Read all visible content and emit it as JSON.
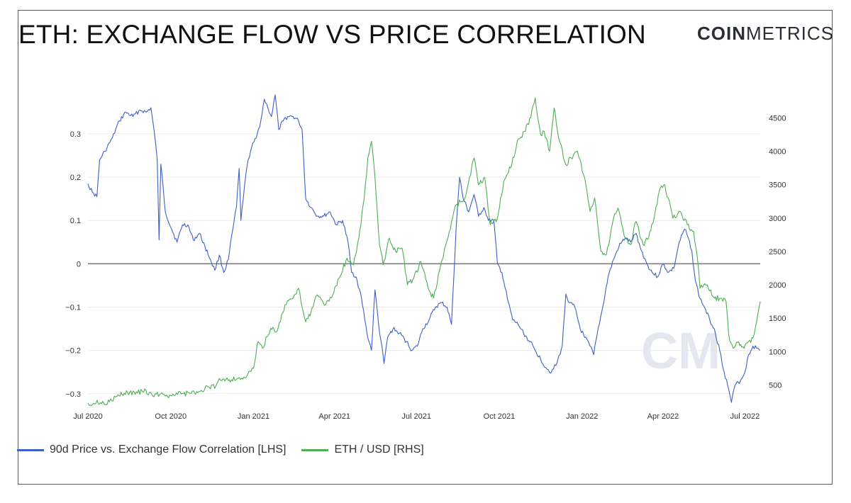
{
  "header": {
    "title": "ETH: EXCHANGE FLOW VS PRICE CORRELATION",
    "brand_bold": "COIN",
    "brand_light": "METRICS"
  },
  "watermark": "CM",
  "colors": {
    "correlation": "#3f5fc6",
    "price": "#4caf50",
    "zero_line": "#7f7f7f",
    "grid": "#ececec"
  },
  "legend": {
    "items": [
      {
        "label": "90d Price vs. Exchange Flow Correlation [LHS]",
        "color": "#3f5fc6"
      },
      {
        "label": "ETH / USD [RHS]",
        "color": "#4caf50"
      }
    ]
  },
  "chart_data": {
    "type": "line",
    "x_ticks": [
      "Jul 2020",
      "Oct 2020",
      "Jan 2021",
      "Apr 2021",
      "Jul 2021",
      "Oct 2021",
      "Jan 2022",
      "Apr 2022",
      "Jul 2022"
    ],
    "left_ticks": [
      "0.3",
      "0.2",
      "0.1",
      "0",
      "−0.1",
      "−0.2",
      "−0.3"
    ],
    "right_ticks": [
      "4500",
      "4000",
      "3500",
      "3000",
      "2500",
      "2000",
      "1500",
      "1000",
      "500"
    ],
    "x_range": [
      "2020-07-01",
      "2022-07-18"
    ],
    "left_range": [
      -0.32,
      0.38
    ],
    "right_range": [
      240,
      4780
    ],
    "grid": true,
    "legend_position": "bottom-left",
    "series": [
      {
        "name": "90d Price vs. Exchange Flow Correlation [LHS]",
        "axis": "left",
        "points": [
          [
            "2020-07-01",
            0.185
          ],
          [
            "2020-07-06",
            0.165
          ],
          [
            "2020-07-11",
            0.155
          ],
          [
            "2020-07-14",
            0.24
          ],
          [
            "2020-07-20",
            0.26
          ],
          [
            "2020-07-28",
            0.29
          ],
          [
            "2020-08-05",
            0.33
          ],
          [
            "2020-08-12",
            0.35
          ],
          [
            "2020-08-20",
            0.34
          ],
          [
            "2020-08-28",
            0.355
          ],
          [
            "2020-09-04",
            0.35
          ],
          [
            "2020-09-09",
            0.36
          ],
          [
            "2020-09-13",
            0.3
          ],
          [
            "2020-09-16",
            0.24
          ],
          [
            "2020-09-18",
            0.055
          ],
          [
            "2020-09-20",
            0.23
          ],
          [
            "2020-09-25",
            0.12
          ],
          [
            "2020-10-02",
            0.08
          ],
          [
            "2020-10-08",
            0.05
          ],
          [
            "2020-10-14",
            0.09
          ],
          [
            "2020-10-20",
            0.09
          ],
          [
            "2020-10-26",
            0.055
          ],
          [
            "2020-11-02",
            0.07
          ],
          [
            "2020-11-08",
            0.04
          ],
          [
            "2020-11-14",
            0.01
          ],
          [
            "2020-11-19",
            -0.015
          ],
          [
            "2020-11-24",
            0.02
          ],
          [
            "2020-11-29",
            -0.02
          ],
          [
            "2020-12-04",
            0.01
          ],
          [
            "2020-12-09",
            0.08
          ],
          [
            "2020-12-13",
            0.13
          ],
          [
            "2020-12-16",
            0.22
          ],
          [
            "2020-12-18",
            0.1
          ],
          [
            "2020-12-22",
            0.18
          ],
          [
            "2020-12-26",
            0.24
          ],
          [
            "2020-12-30",
            0.27
          ],
          [
            "2021-01-04",
            0.29
          ],
          [
            "2021-01-09",
            0.33
          ],
          [
            "2021-01-13",
            0.38
          ],
          [
            "2021-01-17",
            0.36
          ],
          [
            "2021-01-21",
            0.34
          ],
          [
            "2021-01-25",
            0.39
          ],
          [
            "2021-01-29",
            0.31
          ],
          [
            "2021-02-03",
            0.33
          ],
          [
            "2021-02-08",
            0.34
          ],
          [
            "2021-02-14",
            0.34
          ],
          [
            "2021-02-20",
            0.33
          ],
          [
            "2021-02-24",
            0.31
          ],
          [
            "2021-02-28",
            0.15
          ],
          [
            "2021-03-06",
            0.13
          ],
          [
            "2021-03-13",
            0.11
          ],
          [
            "2021-03-20",
            0.11
          ],
          [
            "2021-03-27",
            0.12
          ],
          [
            "2021-04-03",
            0.09
          ],
          [
            "2021-04-10",
            0.1
          ],
          [
            "2021-04-16",
            0.05
          ],
          [
            "2021-04-20",
            -0.02
          ],
          [
            "2021-04-25",
            -0.03
          ],
          [
            "2021-05-01",
            -0.08
          ],
          [
            "2021-05-07",
            -0.16
          ],
          [
            "2021-05-12",
            -0.2
          ],
          [
            "2021-05-16",
            -0.06
          ],
          [
            "2021-05-20",
            -0.14
          ],
          [
            "2021-05-26",
            -0.23
          ],
          [
            "2021-05-30",
            -0.17
          ],
          [
            "2021-06-05",
            -0.15
          ],
          [
            "2021-06-12",
            -0.16
          ],
          [
            "2021-06-20",
            -0.18
          ],
          [
            "2021-06-26",
            -0.2
          ],
          [
            "2021-07-02",
            -0.19
          ],
          [
            "2021-07-08",
            -0.15
          ],
          [
            "2021-07-15",
            -0.13
          ],
          [
            "2021-07-22",
            -0.1
          ],
          [
            "2021-07-29",
            -0.09
          ],
          [
            "2021-08-04",
            -0.1
          ],
          [
            "2021-08-09",
            -0.14
          ],
          [
            "2021-08-14",
            0.08
          ],
          [
            "2021-08-18",
            0.2
          ],
          [
            "2021-08-22",
            0.15
          ],
          [
            "2021-08-28",
            0.12
          ],
          [
            "2021-09-03",
            0.16
          ],
          [
            "2021-09-08",
            0.11
          ],
          [
            "2021-09-14",
            0.13
          ],
          [
            "2021-09-19",
            0.1
          ],
          [
            "2021-09-25",
            0.1
          ],
          [
            "2021-09-29",
            0.0
          ],
          [
            "2021-10-04",
            -0.02
          ],
          [
            "2021-10-10",
            -0.08
          ],
          [
            "2021-10-16",
            -0.13
          ],
          [
            "2021-10-22",
            -0.14
          ],
          [
            "2021-10-28",
            -0.16
          ],
          [
            "2021-11-04",
            -0.18
          ],
          [
            "2021-11-10",
            -0.2
          ],
          [
            "2021-11-16",
            -0.22
          ],
          [
            "2021-11-22",
            -0.24
          ],
          [
            "2021-11-28",
            -0.25
          ],
          [
            "2021-12-04",
            -0.23
          ],
          [
            "2021-12-10",
            -0.19
          ],
          [
            "2021-12-14",
            -0.07
          ],
          [
            "2021-12-18",
            -0.09
          ],
          [
            "2021-12-24",
            -0.1
          ],
          [
            "2021-12-30",
            -0.15
          ],
          [
            "2022-01-04",
            -0.17
          ],
          [
            "2022-01-10",
            -0.19
          ],
          [
            "2022-01-14",
            -0.21
          ],
          [
            "2022-01-18",
            -0.16
          ],
          [
            "2022-01-24",
            -0.1
          ],
          [
            "2022-01-30",
            -0.03
          ],
          [
            "2022-02-05",
            0.01
          ],
          [
            "2022-02-11",
            0.04
          ],
          [
            "2022-02-18",
            0.06
          ],
          [
            "2022-02-24",
            0.05
          ],
          [
            "2022-03-02",
            0.07
          ],
          [
            "2022-03-08",
            0.03
          ],
          [
            "2022-03-14",
            0.0
          ],
          [
            "2022-03-20",
            -0.02
          ],
          [
            "2022-03-26",
            -0.03
          ],
          [
            "2022-04-01",
            0.0
          ],
          [
            "2022-04-07",
            -0.02
          ],
          [
            "2022-04-13",
            -0.01
          ],
          [
            "2022-04-19",
            0.05
          ],
          [
            "2022-04-25",
            0.08
          ],
          [
            "2022-04-29",
            0.06
          ],
          [
            "2022-05-03",
            0.03
          ],
          [
            "2022-05-07",
            -0.04
          ],
          [
            "2022-05-12",
            -0.08
          ],
          [
            "2022-05-17",
            -0.1
          ],
          [
            "2022-05-23",
            -0.13
          ],
          [
            "2022-05-28",
            -0.15
          ],
          [
            "2022-06-03",
            -0.2
          ],
          [
            "2022-06-08",
            -0.25
          ],
          [
            "2022-06-13",
            -0.29
          ],
          [
            "2022-06-16",
            -0.32
          ],
          [
            "2022-06-20",
            -0.28
          ],
          [
            "2022-06-26",
            -0.27
          ],
          [
            "2022-07-01",
            -0.25
          ],
          [
            "2022-07-05",
            -0.21
          ],
          [
            "2022-07-10",
            -0.19
          ],
          [
            "2022-07-14",
            -0.195
          ],
          [
            "2022-07-18",
            -0.2
          ]
        ]
      },
      {
        "name": "ETH / USD [RHS]",
        "axis": "right",
        "points": [
          [
            "2020-07-01",
            228
          ],
          [
            "2020-07-15",
            238
          ],
          [
            "2020-07-25",
            250
          ],
          [
            "2020-08-02",
            330
          ],
          [
            "2020-08-14",
            390
          ],
          [
            "2020-08-25",
            380
          ],
          [
            "2020-09-02",
            440
          ],
          [
            "2020-09-06",
            350
          ],
          [
            "2020-09-20",
            370
          ],
          [
            "2020-10-01",
            345
          ],
          [
            "2020-10-15",
            370
          ],
          [
            "2020-10-31",
            385
          ],
          [
            "2020-11-08",
            450
          ],
          [
            "2020-11-20",
            480
          ],
          [
            "2020-11-24",
            600
          ],
          [
            "2020-12-05",
            580
          ],
          [
            "2020-12-15",
            600
          ],
          [
            "2020-12-24",
            620
          ],
          [
            "2021-01-01",
            750
          ],
          [
            "2021-01-06",
            1150
          ],
          [
            "2021-01-11",
            1050
          ],
          [
            "2021-01-20",
            1350
          ],
          [
            "2021-01-27",
            1300
          ],
          [
            "2021-02-05",
            1700
          ],
          [
            "2021-02-14",
            1800
          ],
          [
            "2021-02-20",
            1950
          ],
          [
            "2021-02-28",
            1450
          ],
          [
            "2021-03-06",
            1600
          ],
          [
            "2021-03-13",
            1850
          ],
          [
            "2021-03-22",
            1700
          ],
          [
            "2021-03-30",
            1850
          ],
          [
            "2021-04-06",
            2100
          ],
          [
            "2021-04-15",
            2400
          ],
          [
            "2021-04-22",
            2300
          ],
          [
            "2021-04-28",
            2700
          ],
          [
            "2021-05-04",
            3300
          ],
          [
            "2021-05-08",
            3900
          ],
          [
            "2021-05-12",
            4150
          ],
          [
            "2021-05-16",
            3600
          ],
          [
            "2021-05-21",
            2600
          ],
          [
            "2021-05-25",
            2300
          ],
          [
            "2021-06-01",
            2700
          ],
          [
            "2021-06-08",
            2500
          ],
          [
            "2021-06-15",
            2550
          ],
          [
            "2021-06-21",
            2000
          ],
          [
            "2021-06-28",
            2100
          ],
          [
            "2021-07-06",
            2350
          ],
          [
            "2021-07-14",
            1950
          ],
          [
            "2021-07-20",
            1800
          ],
          [
            "2021-07-28",
            2300
          ],
          [
            "2021-08-05",
            2700
          ],
          [
            "2021-08-14",
            3200
          ],
          [
            "2021-08-24",
            3300
          ],
          [
            "2021-09-03",
            3900
          ],
          [
            "2021-09-08",
            3500
          ],
          [
            "2021-09-15",
            3600
          ],
          [
            "2021-09-21",
            2900
          ],
          [
            "2021-09-29",
            3000
          ],
          [
            "2021-10-06",
            3550
          ],
          [
            "2021-10-15",
            3800
          ],
          [
            "2021-10-21",
            4150
          ],
          [
            "2021-10-29",
            4300
          ],
          [
            "2021-11-05",
            4500
          ],
          [
            "2021-11-10",
            4800
          ],
          [
            "2021-11-16",
            4250
          ],
          [
            "2021-11-20",
            4300
          ],
          [
            "2021-11-26",
            4000
          ],
          [
            "2021-12-01",
            4650
          ],
          [
            "2021-12-06",
            4200
          ],
          [
            "2021-12-14",
            3800
          ],
          [
            "2021-12-20",
            3900
          ],
          [
            "2021-12-27",
            4000
          ],
          [
            "2022-01-04",
            3600
          ],
          [
            "2022-01-10",
            3100
          ],
          [
            "2022-01-15",
            3300
          ],
          [
            "2022-01-22",
            2500
          ],
          [
            "2022-01-28",
            2450
          ],
          [
            "2022-02-05",
            3000
          ],
          [
            "2022-02-10",
            3150
          ],
          [
            "2022-02-18",
            2700
          ],
          [
            "2022-02-24",
            2600
          ],
          [
            "2022-03-02",
            2950
          ],
          [
            "2022-03-10",
            2600
          ],
          [
            "2022-03-16",
            2700
          ],
          [
            "2022-03-22",
            3000
          ],
          [
            "2022-03-29",
            3450
          ],
          [
            "2022-04-03",
            3500
          ],
          [
            "2022-04-12",
            3000
          ],
          [
            "2022-04-20",
            3100
          ],
          [
            "2022-04-28",
            2900
          ],
          [
            "2022-05-05",
            2800
          ],
          [
            "2022-05-10",
            2300
          ],
          [
            "2022-05-12",
            1950
          ],
          [
            "2022-05-20",
            2000
          ],
          [
            "2022-05-28",
            1800
          ],
          [
            "2022-06-04",
            1800
          ],
          [
            "2022-06-10",
            1750
          ],
          [
            "2022-06-13",
            1250
          ],
          [
            "2022-06-18",
            1050
          ],
          [
            "2022-06-24",
            1150
          ],
          [
            "2022-06-30",
            1050
          ],
          [
            "2022-07-05",
            1150
          ],
          [
            "2022-07-10",
            1200
          ],
          [
            "2022-07-14",
            1450
          ],
          [
            "2022-07-18",
            1750
          ]
        ]
      }
    ]
  }
}
